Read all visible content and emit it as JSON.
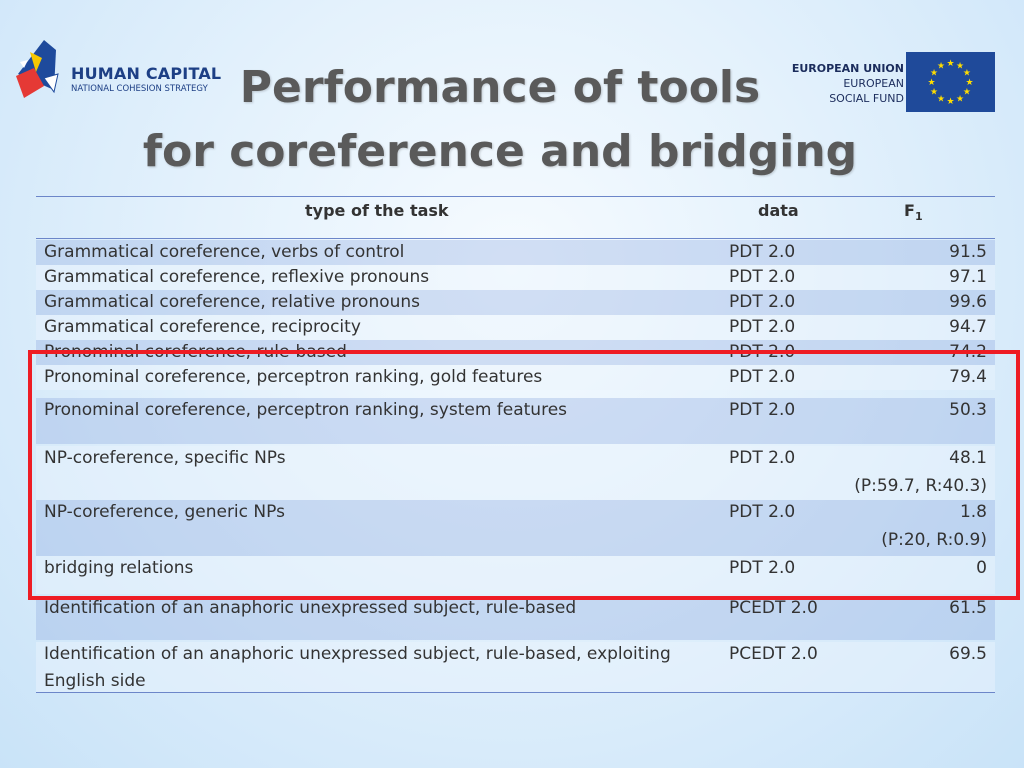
{
  "logos": {
    "left_title": "HUMAN CAPITAL",
    "left_subtitle": "NATIONAL COHESION STRATEGY",
    "right_line1": "EUROPEAN UNION",
    "right_line2": "EUROPEAN",
    "right_line3": "SOCIAL FUND",
    "eu_flag_color": "#1f4a9a",
    "eu_star_color": "#ffdd00"
  },
  "title": {
    "line1": "Performance of tools",
    "line2": "for coreference and bridging"
  },
  "table": {
    "headers": {
      "task": "type of the task",
      "data": "data",
      "f1": "F",
      "f1_sub": "1"
    },
    "rows": [
      {
        "task": "Grammatical coreference, verbs of control",
        "data": "PDT 2.0",
        "f1": "91.5",
        "f1_detail": ""
      },
      {
        "task": "Grammatical coreference, reflexive pronouns",
        "data": "PDT 2.0",
        "f1": "97.1",
        "f1_detail": ""
      },
      {
        "task": "Grammatical coreference, relative pronouns",
        "data": "PDT 2.0",
        "f1": "99.6",
        "f1_detail": ""
      },
      {
        "task": "Grammatical coreference, reciprocity",
        "data": "PDT 2.0",
        "f1": "94.7",
        "f1_detail": ""
      },
      {
        "task": "Pronominal coreference, rule-based",
        "data": "PDT 2.0",
        "f1": "74.2",
        "f1_detail": ""
      },
      {
        "task": "Pronominal coreference, perceptron ranking, gold features",
        "data": "PDT 2.0",
        "f1": "79.4",
        "f1_detail": ""
      },
      {
        "task": "Pronominal coreference, perceptron ranking, system features",
        "data": "PDT 2.0",
        "f1": "50.3",
        "f1_detail": ""
      },
      {
        "task": "NP-coreference, specific NPs",
        "data": "PDT 2.0",
        "f1": "48.1",
        "f1_detail": "(P:59.7, R:40.3)"
      },
      {
        "task": "NP-coreference, generic NPs",
        "data": "PDT 2.0",
        "f1": "1.8",
        "f1_detail": "(P:20, R:0.9)"
      },
      {
        "task": "bridging relations",
        "data": "PDT 2.0",
        "f1": "0",
        "f1_detail": ""
      },
      {
        "task": "Identification of an anaphoric unexpressed subject, rule-based",
        "data": "PCEDT 2.0",
        "f1": "61.5",
        "f1_detail": ""
      },
      {
        "task": "Identification of an anaphoric unexpressed subject, rule-based, exploiting",
        "task_line2": "English side",
        "data": "PCEDT 2.0",
        "f1": "69.5",
        "f1_detail": ""
      }
    ]
  },
  "highlight": {
    "color": "#ee1c24"
  }
}
